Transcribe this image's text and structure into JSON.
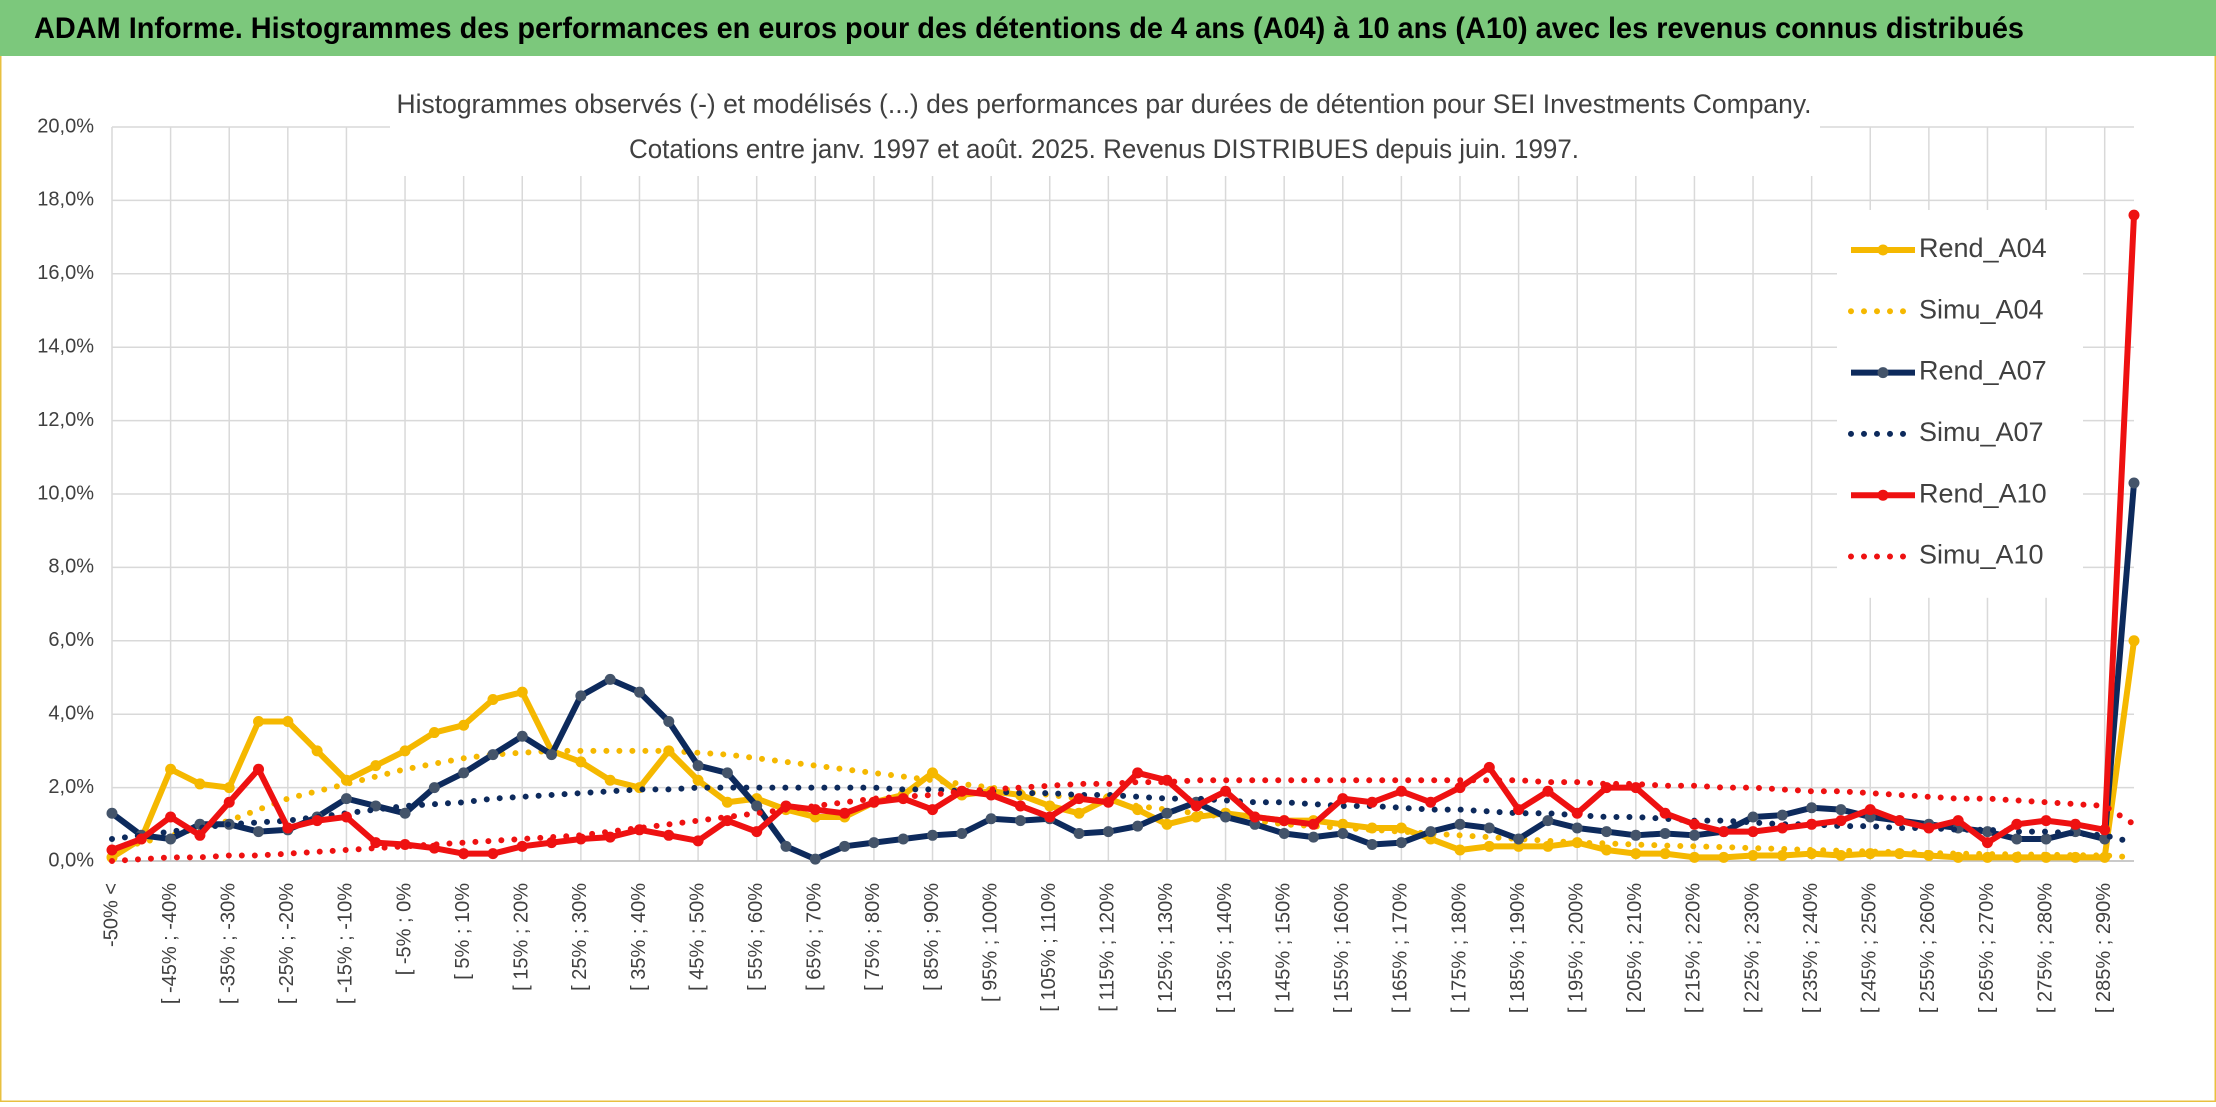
{
  "chart_data": {
    "type": "line",
    "title": "ADAM Informe. Histogrammes des performances en euros pour des détentions de 4 ans (A04) à 10 ans (A10) avec les revenus connus distribués",
    "subtitle": [
      "Histogrammes observés (-) et modélisés (...) des performances par durées de détention pour SEI Investments Company.",
      "Cotations entre janv. 1997 et août. 2025. Revenus DISTRIBUES depuis juin. 1997."
    ],
    "categories": [
      "-50% <",
      null,
      "[ -45% ; -40%",
      null,
      "[ -35% ; -30%",
      null,
      "[ -25% ; -20%",
      null,
      "[ -15% ; -10%",
      null,
      "[ -5% ; 0%",
      null,
      "[ 5% ; 10%",
      null,
      "[ 15% ; 20%",
      null,
      "[ 25% ; 30%",
      null,
      "[ 35% ; 40%",
      null,
      "[ 45% ; 50%",
      null,
      "[ 55% ; 60%",
      null,
      "[ 65% ; 70%",
      null,
      "[ 75% ; 80%",
      null,
      "[ 85% ; 90%",
      null,
      "[ 95% ; 100%",
      null,
      "[ 105% ; 110%",
      null,
      "[ 115% ; 120%",
      null,
      "[ 125% ; 130%",
      null,
      "[ 135% ; 140%",
      null,
      "[ 145% ; 150%",
      null,
      "[ 155% ; 160%",
      null,
      "[ 165% ; 170%",
      null,
      "[ 175% ; 180%",
      null,
      "[ 185% ; 190%",
      null,
      "[ 195% ; 200%",
      null,
      "[ 205% ; 210%",
      null,
      "[ 215% ; 220%",
      null,
      "[ 225% ; 230%",
      null,
      "[ 235% ; 240%",
      null,
      "[ 245% ; 250%",
      null,
      "[ 255% ; 260%",
      null,
      "[ 265% ; 270%",
      null,
      "[ 275% ; 280%",
      null,
      "[ 285% ; 290%",
      null
    ],
    "series": [
      {
        "name": "Rend_A04",
        "color": "#f5b800",
        "style": "solid",
        "markers": true,
        "values": [
          0.1,
          0.6,
          2.5,
          2.1,
          2.0,
          3.8,
          3.8,
          3.0,
          2.2,
          2.6,
          3.0,
          3.5,
          3.7,
          4.4,
          4.6,
          3.0,
          2.7,
          2.2,
          2.0,
          3.0,
          2.2,
          1.6,
          1.7,
          1.4,
          1.2,
          1.2,
          1.6,
          1.8,
          2.4,
          1.8,
          1.9,
          1.8,
          1.5,
          1.3,
          1.7,
          1.4,
          1.0,
          1.2,
          1.3,
          1.2,
          1.1,
          1.1,
          1.0,
          0.9,
          0.9,
          0.6,
          0.3,
          0.4,
          0.4,
          0.4,
          0.5,
          0.3,
          0.2,
          0.2,
          0.1,
          0.1,
          0.15,
          0.15,
          0.2,
          0.15,
          0.2,
          0.2,
          0.15,
          0.1,
          0.1,
          0.1,
          0.1,
          0.1,
          0.1,
          6.0
        ]
      },
      {
        "name": "Simu_A04",
        "color": "#f5b800",
        "style": "dotted",
        "markers": false,
        "values": [
          0.3,
          0.5,
          0.7,
          0.9,
          1.1,
          1.4,
          1.7,
          1.9,
          2.1,
          2.3,
          2.5,
          2.65,
          2.8,
          2.9,
          2.95,
          3.0,
          3.0,
          3.0,
          3.0,
          3.0,
          2.95,
          2.9,
          2.8,
          2.7,
          2.6,
          2.5,
          2.4,
          2.3,
          2.2,
          2.1,
          2.0,
          1.9,
          1.8,
          1.7,
          1.6,
          1.5,
          1.4,
          1.3,
          1.2,
          1.1,
          1.0,
          0.95,
          0.9,
          0.85,
          0.8,
          0.75,
          0.7,
          0.65,
          0.6,
          0.55,
          0.5,
          0.48,
          0.45,
          0.42,
          0.4,
          0.38,
          0.35,
          0.33,
          0.3,
          0.28,
          0.26,
          0.24,
          0.22,
          0.2,
          0.19,
          0.18,
          0.17,
          0.16,
          0.15,
          0.1
        ]
      },
      {
        "name": "Rend_A07",
        "color": "#0d2a5c",
        "style": "solid",
        "markers": true,
        "values": [
          1.3,
          0.7,
          0.6,
          1.0,
          1.0,
          0.8,
          0.85,
          1.2,
          1.7,
          1.5,
          1.3,
          2.0,
          2.4,
          2.9,
          3.4,
          2.9,
          4.5,
          4.95,
          4.6,
          3.8,
          2.6,
          2.4,
          1.5,
          0.4,
          0.05,
          0.4,
          0.5,
          0.6,
          0.7,
          0.75,
          1.15,
          1.1,
          1.15,
          0.75,
          0.8,
          0.95,
          1.3,
          1.6,
          1.2,
          1.0,
          0.75,
          0.65,
          0.75,
          0.45,
          0.5,
          0.8,
          1.0,
          0.9,
          0.6,
          1.1,
          0.9,
          0.8,
          0.7,
          0.75,
          0.7,
          0.8,
          1.2,
          1.25,
          1.45,
          1.4,
          1.2,
          1.1,
          1.0,
          0.9,
          0.8,
          0.6,
          0.6,
          0.8,
          0.6,
          10.3
        ]
      },
      {
        "name": "Simu_A07",
        "color": "#0d2a5c",
        "style": "dotted",
        "markers": false,
        "values": [
          0.6,
          0.7,
          0.8,
          0.9,
          1.0,
          1.05,
          1.1,
          1.2,
          1.3,
          1.4,
          1.5,
          1.55,
          1.6,
          1.7,
          1.75,
          1.8,
          1.85,
          1.9,
          1.95,
          1.95,
          2.0,
          2.0,
          2.0,
          2.0,
          2.0,
          2.0,
          2.0,
          1.95,
          1.95,
          1.9,
          1.9,
          1.85,
          1.85,
          1.8,
          1.8,
          1.75,
          1.7,
          1.7,
          1.65,
          1.6,
          1.6,
          1.55,
          1.5,
          1.5,
          1.45,
          1.4,
          1.4,
          1.35,
          1.3,
          1.3,
          1.25,
          1.2,
          1.2,
          1.15,
          1.1,
          1.1,
          1.05,
          1.0,
          1.0,
          0.95,
          0.95,
          0.9,
          0.9,
          0.85,
          0.85,
          0.8,
          0.8,
          0.75,
          0.7,
          0.5
        ]
      },
      {
        "name": "Rend_A10",
        "color": "#ee1111",
        "style": "solid",
        "markers": true,
        "values": [
          0.3,
          0.6,
          1.2,
          0.7,
          1.6,
          2.5,
          0.9,
          1.1,
          1.2,
          0.5,
          0.45,
          0.35,
          0.2,
          0.2,
          0.4,
          0.5,
          0.6,
          0.65,
          0.85,
          0.7,
          0.55,
          1.1,
          0.8,
          1.5,
          1.4,
          1.3,
          1.6,
          1.7,
          1.4,
          1.9,
          1.8,
          1.5,
          1.2,
          1.7,
          1.6,
          2.4,
          2.2,
          1.5,
          1.9,
          1.2,
          1.1,
          1.0,
          1.7,
          1.6,
          1.9,
          1.6,
          2.0,
          2.55,
          1.4,
          1.9,
          1.3,
          2.0,
          2.0,
          1.3,
          1.0,
          0.8,
          0.8,
          0.9,
          1.0,
          1.1,
          1.4,
          1.1,
          0.9,
          1.1,
          0.5,
          1.0,
          1.1,
          1.0,
          0.85,
          17.6
        ]
      },
      {
        "name": "Simu_A10",
        "color": "#ee1111",
        "style": "dotted",
        "markers": false,
        "values": [
          0.0,
          0.05,
          0.1,
          0.1,
          0.15,
          0.15,
          0.2,
          0.25,
          0.3,
          0.35,
          0.4,
          0.45,
          0.5,
          0.55,
          0.6,
          0.65,
          0.7,
          0.8,
          0.9,
          1.0,
          1.1,
          1.2,
          1.3,
          1.4,
          1.5,
          1.6,
          1.7,
          1.75,
          1.8,
          1.9,
          1.95,
          2.0,
          2.05,
          2.1,
          2.1,
          2.15,
          2.15,
          2.2,
          2.2,
          2.2,
          2.2,
          2.2,
          2.2,
          2.2,
          2.2,
          2.2,
          2.2,
          2.2,
          2.2,
          2.15,
          2.15,
          2.1,
          2.1,
          2.05,
          2.05,
          2.0,
          2.0,
          1.95,
          1.9,
          1.9,
          1.85,
          1.8,
          1.75,
          1.7,
          1.7,
          1.65,
          1.6,
          1.55,
          1.5,
          1.0
        ]
      }
    ],
    "ylim": [
      0,
      20
    ],
    "yticks": [
      {
        "value": 0,
        "label": "0,0%"
      },
      {
        "value": 2,
        "label": "2,0%"
      },
      {
        "value": 4,
        "label": "4,0%"
      },
      {
        "value": 6,
        "label": "6,0%"
      },
      {
        "value": 8,
        "label": "8,0%"
      },
      {
        "value": 10,
        "label": "10,0%"
      },
      {
        "value": 12,
        "label": "12,0%"
      },
      {
        "value": 14,
        "label": "14,0%"
      },
      {
        "value": 16,
        "label": "16,0%"
      },
      {
        "value": 18,
        "label": "18,0%"
      },
      {
        "value": 20,
        "label": "20,0%"
      }
    ],
    "grid": true,
    "legend": "right"
  }
}
